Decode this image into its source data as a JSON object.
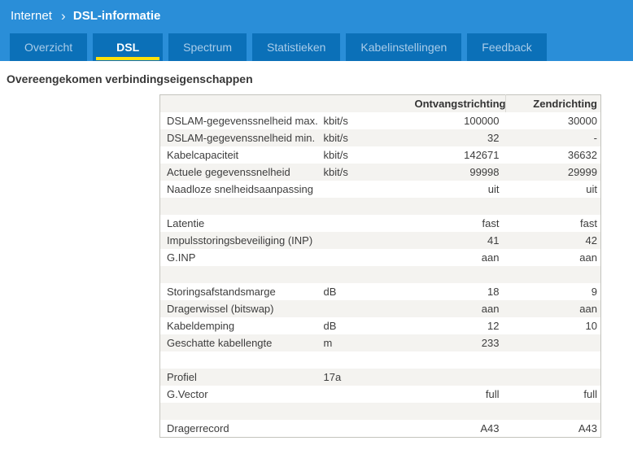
{
  "breadcrumb": {
    "section": "Internet",
    "page": "DSL-informatie"
  },
  "tabs": [
    {
      "label": "Overzicht",
      "active": false
    },
    {
      "label": "DSL",
      "active": true
    },
    {
      "label": "Spectrum",
      "active": false
    },
    {
      "label": "Statistieken",
      "active": false
    },
    {
      "label": "Kabelinstellingen",
      "active": false
    },
    {
      "label": "Feedback",
      "active": false
    }
  ],
  "heading": "Overeengekomen verbindingseigenschappen",
  "table": {
    "columns": {
      "property": "",
      "unit": "",
      "receive": "Ontvangstrichting",
      "send": "Zendrichting"
    },
    "rows": [
      {
        "name": "DSLAM-gegevenssnelheid max.",
        "unit": "kbit/s",
        "recv": "100000",
        "send": "30000"
      },
      {
        "name": "DSLAM-gegevenssnelheid min.",
        "unit": "kbit/s",
        "recv": "32",
        "send": "-"
      },
      {
        "name": "Kabelcapaciteit",
        "unit": "kbit/s",
        "recv": "142671",
        "send": "36632"
      },
      {
        "name": "Actuele gegevenssnelheid",
        "unit": "kbit/s",
        "recv": "99998",
        "send": "29999"
      },
      {
        "name": "Naadloze snelheidsaanpassing",
        "unit": "",
        "recv": "uit",
        "send": "uit"
      },
      {
        "spacer": true
      },
      {
        "name": "Latentie",
        "unit": "",
        "recv": "fast",
        "send": "fast"
      },
      {
        "name": "Impulsstoringsbeveiliging (INP)",
        "unit": "",
        "recv": "41",
        "send": "42"
      },
      {
        "name": "G.INP",
        "unit": "",
        "recv": "aan",
        "send": "aan"
      },
      {
        "spacer": true
      },
      {
        "name": "Storingsafstandsmarge",
        "unit": "dB",
        "recv": "18",
        "send": "9"
      },
      {
        "name": "Dragerwissel (bitswap)",
        "unit": "",
        "recv": "aan",
        "send": "aan"
      },
      {
        "name": "Kabeldemping",
        "unit": "dB",
        "recv": "12",
        "send": "10"
      },
      {
        "name": "Geschatte kabellengte",
        "unit": "m",
        "recv": "233",
        "send": ""
      },
      {
        "spacer": true
      },
      {
        "name": "Profiel",
        "unit": "17a",
        "recv": "",
        "send": ""
      },
      {
        "name": "G.Vector",
        "unit": "",
        "recv": "full",
        "send": "full"
      },
      {
        "spacer": true
      },
      {
        "name": "Dragerrecord",
        "unit": "",
        "recv": "A43",
        "send": "A43"
      }
    ]
  },
  "colors": {
    "blue": "#2a8ed8",
    "tabblue": "#0b70b8",
    "yellow": "#ffe10a",
    "stripe": "#f4f3f0",
    "tabtext": "#a9cce9",
    "border": "#c3c3bd"
  }
}
